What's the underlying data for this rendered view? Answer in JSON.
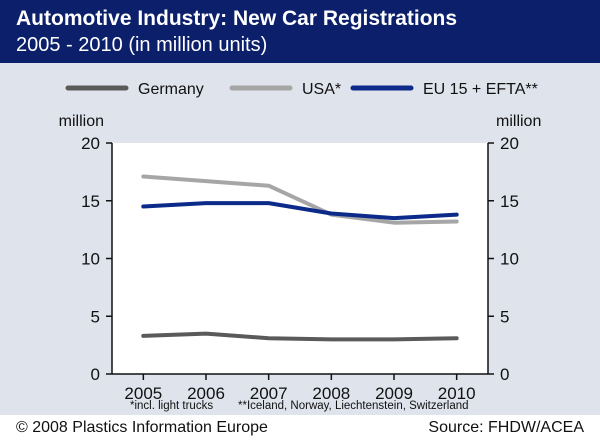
{
  "header": {
    "title": "Automotive Industry: New Car Registrations",
    "subtitle": "2005 - 2010 (in million units)"
  },
  "footer": {
    "copyright": "© 2008 Plastics Information Europe",
    "source": "Source: FHDW/ACEA"
  },
  "colors": {
    "header_bg": "#0b1f6b",
    "panel_bg": "#dfe3ec",
    "plot_bg": "#ffffff"
  },
  "chart_data": {
    "type": "line",
    "title": "Automotive Industry: New Car Registrations",
    "subtitle": "2005 - 2010 (in million units)",
    "y_unit_left": "million",
    "y_unit_right": "million",
    "x": [
      "2005",
      "2006",
      "2007",
      "2008",
      "2009",
      "2010"
    ],
    "yticks": [
      "0",
      "5",
      "10",
      "15",
      "20"
    ],
    "ylim": [
      0,
      20
    ],
    "grid": false,
    "legend_position": "top",
    "series": [
      {
        "name": "Germany",
        "color": "#5a5a5a",
        "values": [
          3.3,
          3.5,
          3.1,
          3.0,
          3.0,
          3.1
        ]
      },
      {
        "name": "USA*",
        "color": "#a6a6a6",
        "values": [
          17.1,
          16.7,
          16.3,
          13.8,
          13.1,
          13.2
        ]
      },
      {
        "name": "EU 15 + EFTA**",
        "color": "#0c2a8a",
        "values": [
          14.5,
          14.8,
          14.8,
          13.9,
          13.5,
          13.8
        ]
      }
    ],
    "footnotes": [
      "*incl. light trucks",
      "**Iceland, Norway, Liechtenstein, Switzerland"
    ]
  }
}
